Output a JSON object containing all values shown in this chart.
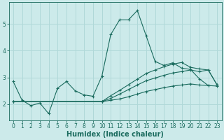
{
  "xlabel": "Humidex (Indice chaleur)",
  "bg_color": "#cceaea",
  "line_color": "#1a6b5e",
  "grid_color": "#b0d8d8",
  "xlim": [
    -0.5,
    23.5
  ],
  "ylim": [
    1.4,
    5.8
  ],
  "xticks": [
    0,
    1,
    2,
    3,
    4,
    5,
    6,
    7,
    8,
    9,
    10,
    11,
    12,
    13,
    14,
    15,
    16,
    17,
    18,
    19,
    20,
    21,
    22,
    23
  ],
  "yticks": [
    2,
    3,
    4,
    5
  ],
  "lines": [
    {
      "x": [
        0,
        1,
        2,
        3,
        4,
        5,
        6,
        7,
        8,
        9,
        10,
        11,
        12,
        13,
        14,
        15,
        16,
        17,
        18,
        19,
        20,
        21,
        22
      ],
      "y": [
        2.85,
        2.15,
        1.95,
        2.05,
        1.65,
        2.6,
        2.85,
        2.5,
        2.35,
        2.3,
        3.05,
        4.6,
        5.15,
        5.15,
        5.5,
        4.55,
        3.6,
        3.45,
        3.55,
        3.35,
        3.3,
        2.95,
        2.7
      ]
    },
    {
      "x": [
        0,
        10,
        11,
        12,
        13,
        14,
        15,
        16,
        17,
        18,
        19,
        20,
        21,
        22,
        23
      ],
      "y": [
        2.1,
        2.1,
        2.15,
        2.2,
        2.28,
        2.38,
        2.48,
        2.55,
        2.62,
        2.68,
        2.72,
        2.76,
        2.72,
        2.7,
        2.68
      ]
    },
    {
      "x": [
        0,
        10,
        11,
        12,
        13,
        14,
        15,
        16,
        17,
        18,
        19,
        20,
        21,
        22,
        23
      ],
      "y": [
        2.1,
        2.1,
        2.22,
        2.38,
        2.55,
        2.72,
        2.88,
        2.98,
        3.08,
        3.17,
        3.22,
        3.28,
        3.22,
        3.28,
        2.72
      ]
    },
    {
      "x": [
        0,
        10,
        11,
        12,
        13,
        14,
        15,
        16,
        17,
        18,
        19,
        20,
        21,
        22,
        23
      ],
      "y": [
        2.1,
        2.1,
        2.32,
        2.52,
        2.73,
        2.94,
        3.15,
        3.28,
        3.4,
        3.5,
        3.56,
        3.38,
        3.32,
        3.28,
        2.72
      ]
    }
  ],
  "xlabel_fontsize": 7,
  "tick_fontsize": 5.5
}
